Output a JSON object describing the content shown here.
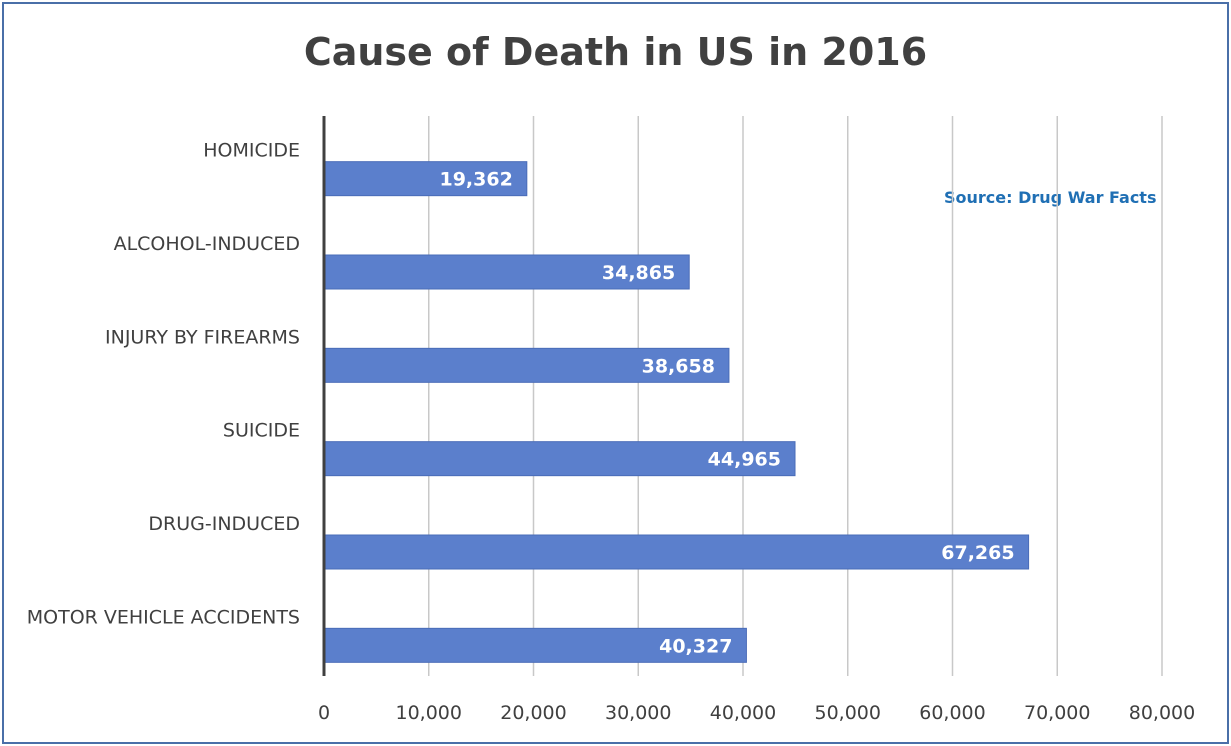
{
  "chart_data": {
    "type": "bar",
    "orientation": "horizontal",
    "title": "Cause of Death in US in 2016",
    "annotation": "Source: Drug War Facts",
    "categories": [
      "HOMICIDE",
      "ALCOHOL-INDUCED",
      "INJURY BY FIREARMS",
      "SUICIDE",
      "DRUG-INDUCED",
      "MOTOR VEHICLE ACCIDENTS"
    ],
    "values": [
      19362,
      34865,
      38658,
      44965,
      67265,
      40327
    ],
    "value_labels": [
      "19,362",
      "34,865",
      "38,658",
      "44,965",
      "67,265",
      "40,327"
    ],
    "x_ticks": [
      "0",
      "10,000",
      "20,000",
      "30,000",
      "40,000",
      "50,000",
      "60,000",
      "70,000",
      "80,000"
    ],
    "xlim": [
      0,
      80000
    ],
    "grid": "vertical",
    "bar_color": "#5b7fcc"
  }
}
